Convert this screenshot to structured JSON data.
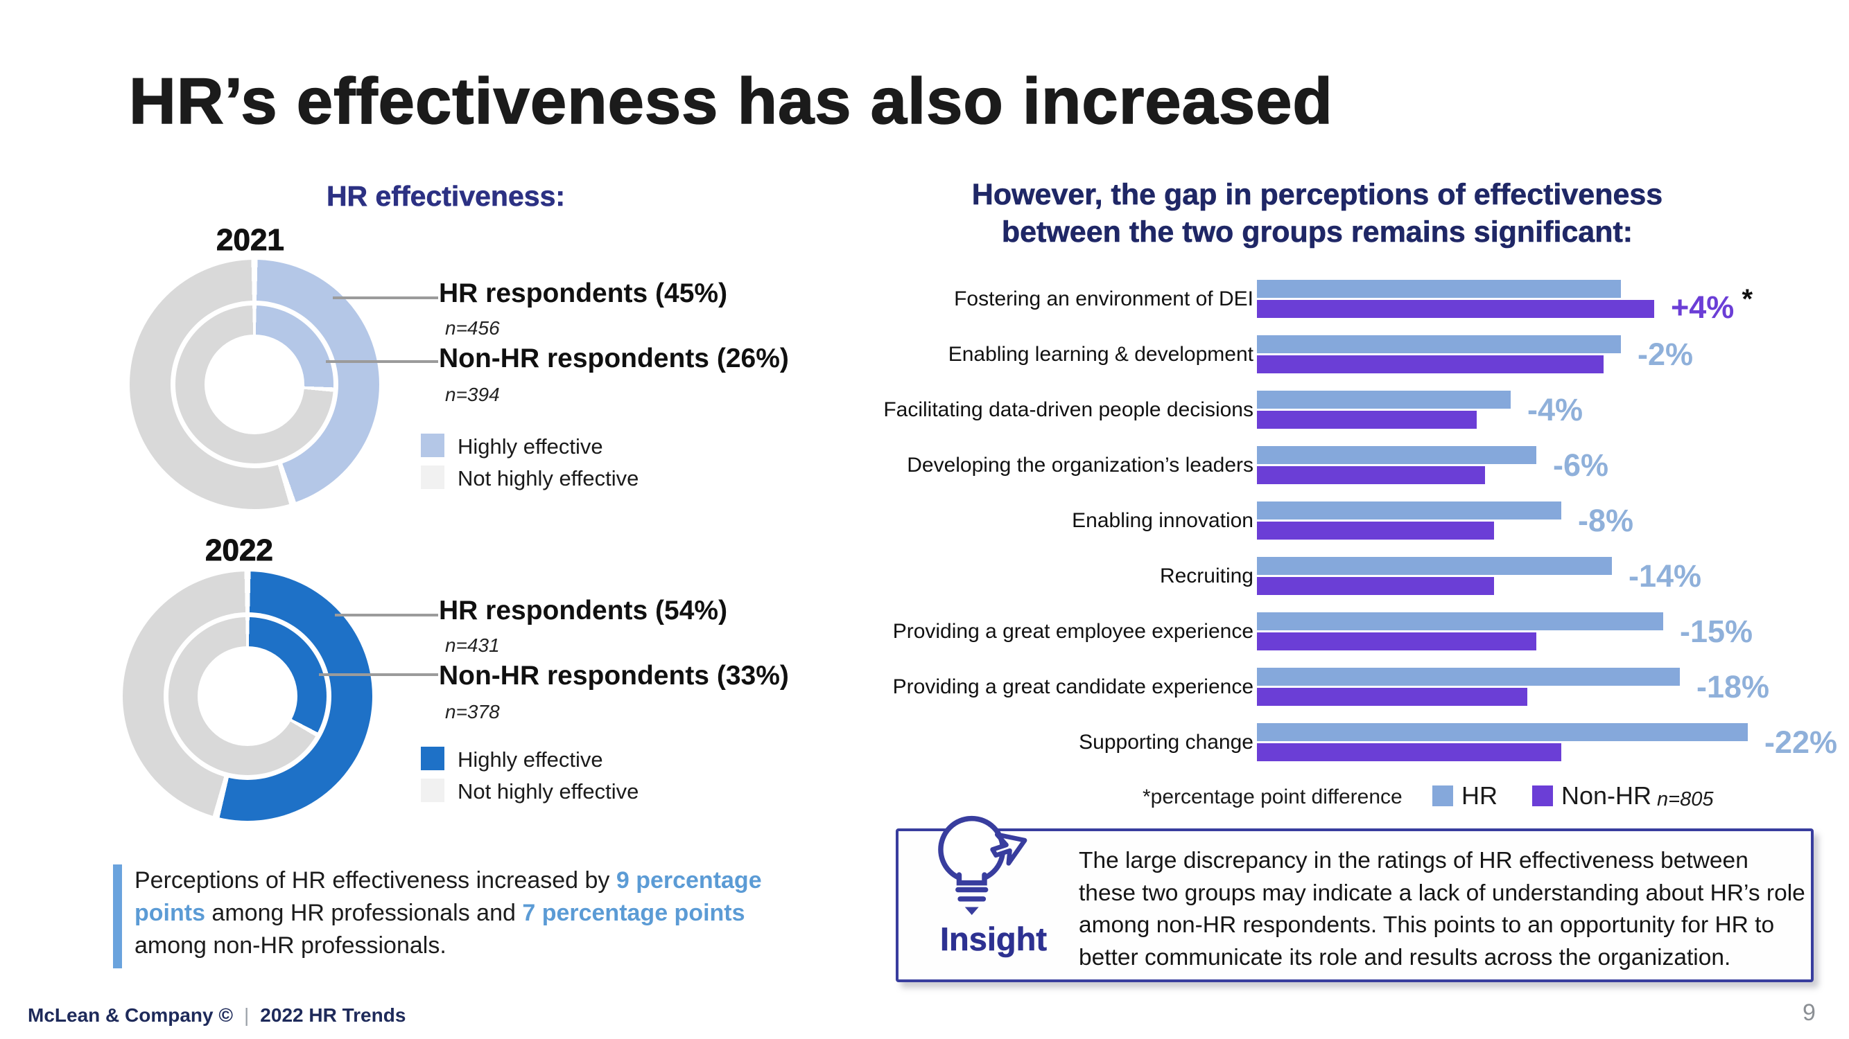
{
  "slide": {
    "title": "HR’s effectiveness has also increased",
    "footer": {
      "brand": "McLean & Company ©",
      "separator": "|",
      "doc": "2022 HR Trends",
      "page_number": "9"
    }
  },
  "colors": {
    "navy_heading": "#1f2766",
    "left_heading_blue": "#2c3183",
    "blue_2021": "#b4c7e7",
    "blue_2022": "#1e71c7",
    "bar_hr_blue": "#85a8db",
    "bar_nonhr_purple": "#6b3ed6",
    "diff_label_blue": "#8fb0da",
    "gray_ring": "#d9d9d9",
    "gray_light": "#f1f1f1",
    "callout_blue": "#5b9bd5",
    "accent_bar_blue": "#6aa3dd",
    "insight_indigo": "#383d9e",
    "footer_navy": "#1e2a5a"
  },
  "left": {
    "heading": "HR effectiveness:",
    "donut_2021": {
      "year_label": "2021",
      "hr_label": "HR respondents (45%)",
      "hr_n": "n=456",
      "nonhr_label": "Non-HR respondents (26%)",
      "nonhr_n": "n=394",
      "legend": {
        "highly": "Highly effective",
        "not_highly": "Not highly effective"
      }
    },
    "donut_2022": {
      "year_label": "2022",
      "hr_label": "HR respondents (54%)",
      "hr_n": "n=431",
      "nonhr_label": "Non-HR respondents (33%)",
      "nonhr_n": "n=378",
      "legend": {
        "highly": "Highly effective",
        "not_highly": "Not highly effective"
      }
    },
    "callout": {
      "parts": [
        {
          "text": "Perceptions of HR effectiveness increased by ",
          "highlight": false
        },
        {
          "text": "9 percentage points",
          "highlight": true
        },
        {
          "text": " among HR professionals and ",
          "highlight": false
        },
        {
          "text": "7 percentage points",
          "highlight": true
        },
        {
          "text": " among non-HR professionals.",
          "highlight": false
        }
      ]
    }
  },
  "right": {
    "heading": "However, the gap in perceptions of effectiveness between the two groups remains significant:",
    "legend": {
      "note": "*percentage point difference",
      "hr": "HR",
      "nonhr": "Non-HR",
      "n": "n=805"
    },
    "insight": {
      "label": "Insight",
      "text": "The large discrepancy in the ratings of HR effectiveness between these two groups may indicate a lack of understanding about HR’s role among non-HR respondents. This points to an opportunity for HR to better communicate its role and results across the organization."
    }
  },
  "chart_data": [
    {
      "type": "pie",
      "subtype": "double_donut",
      "title": "HR effectiveness: 2021",
      "legend": [
        "Highly effective",
        "Not highly effective"
      ],
      "rings": [
        {
          "name": "HR respondents (outer ring)",
          "highly_effective_pct": 45,
          "not_highly_effective_pct": 55,
          "n": 456
        },
        {
          "name": "Non-HR respondents (inner ring)",
          "highly_effective_pct": 26,
          "not_highly_effective_pct": 74,
          "n": 394
        }
      ]
    },
    {
      "type": "pie",
      "subtype": "double_donut",
      "title": "HR effectiveness: 2022",
      "legend": [
        "Highly effective",
        "Not highly effective"
      ],
      "rings": [
        {
          "name": "HR respondents (outer ring)",
          "highly_effective_pct": 54,
          "not_highly_effective_pct": 46,
          "n": 431
        },
        {
          "name": "Non-HR respondents (inner ring)",
          "highly_effective_pct": 33,
          "not_highly_effective_pct": 67,
          "n": 378
        }
      ]
    },
    {
      "type": "bar",
      "orientation": "horizontal",
      "title": "Gap in perceptions of effectiveness between the two groups",
      "categories": [
        "Fostering an environment of DEI",
        "Enabling learning & development",
        "Facilitating data-driven people decisions",
        "Developing the organization’s leaders",
        "Enabling innovation",
        "Recruiting",
        "Providing a great employee experience",
        "Providing a great candidate experience",
        "Supporting change"
      ],
      "series": [
        {
          "name": "HR",
          "values": [
            43,
            43,
            30,
            33,
            36,
            42,
            48,
            50,
            58
          ]
        },
        {
          "name": "Non-HR",
          "values": [
            47,
            41,
            26,
            27,
            28,
            28,
            33,
            32,
            36
          ]
        }
      ],
      "diff_labels": [
        "+4%",
        "-2%",
        "-4%",
        "-6%",
        "-8%",
        "-14%",
        "-15%",
        "-18%",
        "-22%"
      ],
      "star_symbol": "*",
      "diff_note": "*percentage point difference",
      "n_label": "n=805",
      "values_estimated": true,
      "axis_shown": false,
      "legend_position": "bottom"
    }
  ]
}
